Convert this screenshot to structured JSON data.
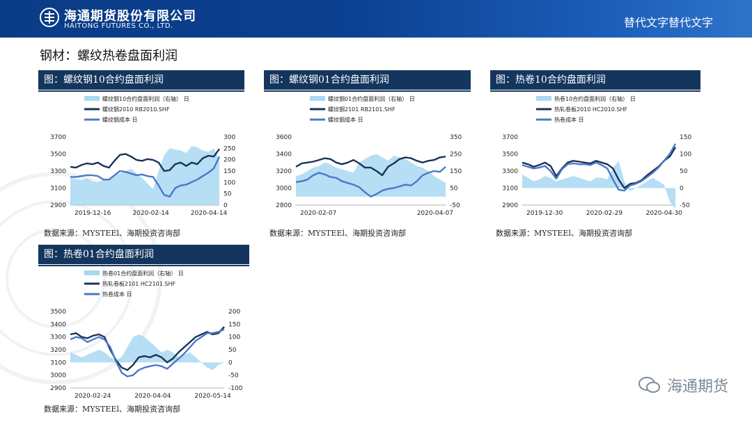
{
  "header": {
    "company_cn": "海通期货股份有限公司",
    "company_en": "HAITONG FUTURES CO., LTD.",
    "right_text": "替代文字替代文字"
  },
  "section_title": "钢材：螺纹热卷盘面利润",
  "watermark": "海通期货",
  "colors": {
    "banner": "#0b3f8f",
    "panel_head": "#14365e",
    "area": "#a9d8f2",
    "line_dark": "#1b3356",
    "line_blue": "#4a78c8"
  },
  "panels": [
    {
      "title": "图：螺纹钢10合约盘面利润",
      "source": "数据来源：MYSTEEl、海期投资咨询部",
      "legend": [
        "螺纹钢10合约盘面利润（右轴）  日",
        "螺纹钢2010  RB2010.SHF",
        "螺纹钢成本  日"
      ],
      "left_ticks": [
        "3700",
        "3500",
        "3300",
        "3100",
        "2900"
      ],
      "right_ticks": [
        "300",
        "250",
        "200",
        "150",
        "100",
        "50",
        "0"
      ],
      "x_ticks": [
        "2019-12-16",
        "2020-02-14",
        "2020-04-14"
      ]
    },
    {
      "title": "图：螺纹钢01合约盘面利润",
      "source": "数据来源：MYSTEEl、海期投资咨询部",
      "legend": [
        "螺纹钢01合约盘面利润（右轴）  日",
        "螺纹钢2101  RB2101.SHF",
        "螺纹钢成本  日"
      ],
      "left_ticks": [
        "3600",
        "3400",
        "3200",
        "3000",
        "2800"
      ],
      "right_ticks": [
        "350",
        "250",
        "150",
        "50",
        "-50"
      ],
      "x_ticks": [
        "2020-02-07",
        "2020-04-07"
      ]
    },
    {
      "title": "图：热卷10合约盘面利润",
      "source": "数据来源：MYSTEEl、海期投资咨询部",
      "legend": [
        "热卷10合约盘面利润（右轴）  日",
        "热轧卷板2010  HC2010.SHF",
        "热卷成本  日"
      ],
      "left_ticks": [
        "3700",
        "3500",
        "3300",
        "3100",
        "2900"
      ],
      "right_ticks": [
        "150",
        "100",
        "50",
        "0",
        "-50"
      ],
      "x_ticks": [
        "2019-12-30",
        "2020-02-29",
        "2020-04-30"
      ]
    },
    {
      "title": "图：热卷01合约盘面利润",
      "source": "数据来源：MYSTEEl、海期投资咨询部",
      "legend": [
        "热卷01合约盘面利润（右轴）  日",
        "热轧卷板2101  HC2101.SHF",
        "热卷成本  日"
      ],
      "left_ticks": [
        "3500",
        "3400",
        "3300",
        "3200",
        "3100",
        "3000",
        "2900"
      ],
      "right_ticks": [
        "200",
        "150",
        "100",
        "50",
        "0",
        "-50",
        "-100"
      ],
      "x_ticks": [
        "2020-02-24",
        "2020-04-04",
        "2020-05-14"
      ]
    }
  ],
  "chart_data": [
    {
      "type": "line",
      "title": "图：螺纹钢10合约盘面利润",
      "x_labels": [
        "2019-12-16",
        "2020-02-14",
        "2020-04-14"
      ],
      "ylim_left": [
        2900,
        3700
      ],
      "ylim_right": [
        0,
        300
      ],
      "series": [
        {
          "name": "螺纹钢10合约盘面利润（右轴）",
          "axis": "right",
          "kind": "area",
          "values": [
            120,
            115,
            110,
            118,
            105,
            100,
            112,
            108,
            130,
            140,
            150,
            160,
            140,
            120,
            95,
            70,
            150,
            220,
            250,
            245,
            240,
            230,
            260,
            255,
            240,
            235,
            250,
            200
          ]
        },
        {
          "name": "螺纹钢2010",
          "axis": "left",
          "kind": "line",
          "values": [
            3350,
            3340,
            3370,
            3390,
            3380,
            3400,
            3360,
            3340,
            3420,
            3490,
            3500,
            3470,
            3430,
            3420,
            3440,
            3430,
            3400,
            3300,
            3310,
            3380,
            3400,
            3360,
            3400,
            3380,
            3450,
            3480,
            3470,
            3560
          ]
        },
        {
          "name": "螺纹钢成本",
          "axis": "left",
          "kind": "line",
          "values": [
            3230,
            3230,
            3240,
            3250,
            3250,
            3240,
            3200,
            3200,
            3250,
            3300,
            3290,
            3270,
            3250,
            3260,
            3240,
            3230,
            3130,
            3020,
            3000,
            3100,
            3130,
            3140,
            3170,
            3200,
            3240,
            3280,
            3330,
            3470
          ]
        }
      ]
    },
    {
      "type": "line",
      "title": "图：螺纹钢01合约盘面利润",
      "x_labels": [
        "2020-02-07",
        "2020-04-07"
      ],
      "ylim_left": [
        2800,
        3600
      ],
      "ylim_right": [
        -50,
        350
      ],
      "series": [
        {
          "name": "螺纹钢01合约盘面利润（右轴）",
          "axis": "right",
          "kind": "area",
          "values": [
            120,
            130,
            150,
            170,
            180,
            200,
            190,
            170,
            160,
            150,
            140,
            200,
            220,
            240,
            250,
            230,
            210,
            240,
            230,
            220,
            200,
            180,
            170,
            150,
            120,
            100,
            80
          ]
        },
        {
          "name": "螺纹钢2101",
          "axis": "left",
          "kind": "line",
          "values": [
            3250,
            3290,
            3300,
            3310,
            3330,
            3350,
            3340,
            3300,
            3280,
            3300,
            3330,
            3290,
            3240,
            3240,
            3200,
            3150,
            3250,
            3290,
            3340,
            3360,
            3350,
            3320,
            3300,
            3320,
            3330,
            3360,
            3370
          ]
        },
        {
          "name": "螺纹钢成本",
          "axis": "left",
          "kind": "line",
          "values": [
            3070,
            3080,
            3100,
            3150,
            3180,
            3160,
            3130,
            3120,
            3080,
            3060,
            3040,
            3010,
            2950,
            2900,
            2930,
            2970,
            2990,
            3000,
            3020,
            3040,
            3030,
            3080,
            3150,
            3180,
            3200,
            3190,
            3250
          ]
        }
      ]
    },
    {
      "type": "line",
      "title": "图：热卷10合约盘面利润",
      "x_labels": [
        "2019-12-30",
        "2020-02-29",
        "2020-04-30"
      ],
      "ylim_left": [
        2900,
        3700
      ],
      "ylim_right": [
        -50,
        150
      ],
      "series": [
        {
          "name": "热卷10合约盘面利润（右轴）",
          "axis": "right",
          "kind": "area",
          "values": [
            40,
            30,
            20,
            25,
            35,
            30,
            20,
            25,
            30,
            35,
            30,
            25,
            20,
            30,
            30,
            25,
            60,
            80,
            20,
            -10,
            0,
            10,
            20,
            30,
            20,
            10,
            -40,
            -60
          ]
        },
        {
          "name": "热轧卷板2010",
          "axis": "left",
          "kind": "line",
          "values": [
            3400,
            3380,
            3350,
            3370,
            3400,
            3360,
            3240,
            3330,
            3400,
            3420,
            3410,
            3400,
            3390,
            3420,
            3400,
            3380,
            3330,
            3200,
            3100,
            3150,
            3160,
            3190,
            3250,
            3300,
            3350,
            3420,
            3470,
            3580
          ]
        },
        {
          "name": "热卷成本",
          "axis": "left",
          "kind": "line",
          "values": [
            3370,
            3350,
            3330,
            3340,
            3360,
            3300,
            3210,
            3320,
            3380,
            3390,
            3380,
            3380,
            3370,
            3400,
            3370,
            3330,
            3200,
            3080,
            3070,
            3130,
            3150,
            3180,
            3230,
            3280,
            3340,
            3420,
            3500,
            3620
          ]
        }
      ]
    },
    {
      "type": "line",
      "title": "图：热卷01合约盘面利润",
      "x_labels": [
        "2020-02-24",
        "2020-04-04",
        "2020-05-14"
      ],
      "ylim_left": [
        2900,
        3500
      ],
      "ylim_right": [
        -100,
        200
      ],
      "series": [
        {
          "name": "热卷01合约盘面利润（右轴）",
          "axis": "right",
          "kind": "area",
          "values": [
            40,
            30,
            20,
            30,
            40,
            50,
            40,
            20,
            10,
            20,
            60,
            100,
            110,
            100,
            80,
            60,
            40,
            50,
            40,
            20,
            30,
            40,
            20,
            0,
            -20,
            -30,
            -10,
            0
          ]
        },
        {
          "name": "热轧卷板2101",
          "axis": "left",
          "kind": "line",
          "values": [
            3320,
            3330,
            3300,
            3290,
            3310,
            3320,
            3300,
            3200,
            3120,
            3060,
            3040,
            3080,
            3140,
            3150,
            3140,
            3160,
            3140,
            3100,
            3130,
            3180,
            3220,
            3260,
            3300,
            3320,
            3340,
            3320,
            3330,
            3380
          ]
        },
        {
          "name": "热卷成本",
          "axis": "left",
          "kind": "line",
          "values": [
            3280,
            3300,
            3290,
            3260,
            3280,
            3300,
            3280,
            3220,
            3110,
            3020,
            2990,
            3000,
            3040,
            3060,
            3070,
            3080,
            3070,
            3050,
            3090,
            3130,
            3170,
            3220,
            3270,
            3300,
            3330,
            3330,
            3340,
            3360
          ]
        }
      ]
    }
  ]
}
